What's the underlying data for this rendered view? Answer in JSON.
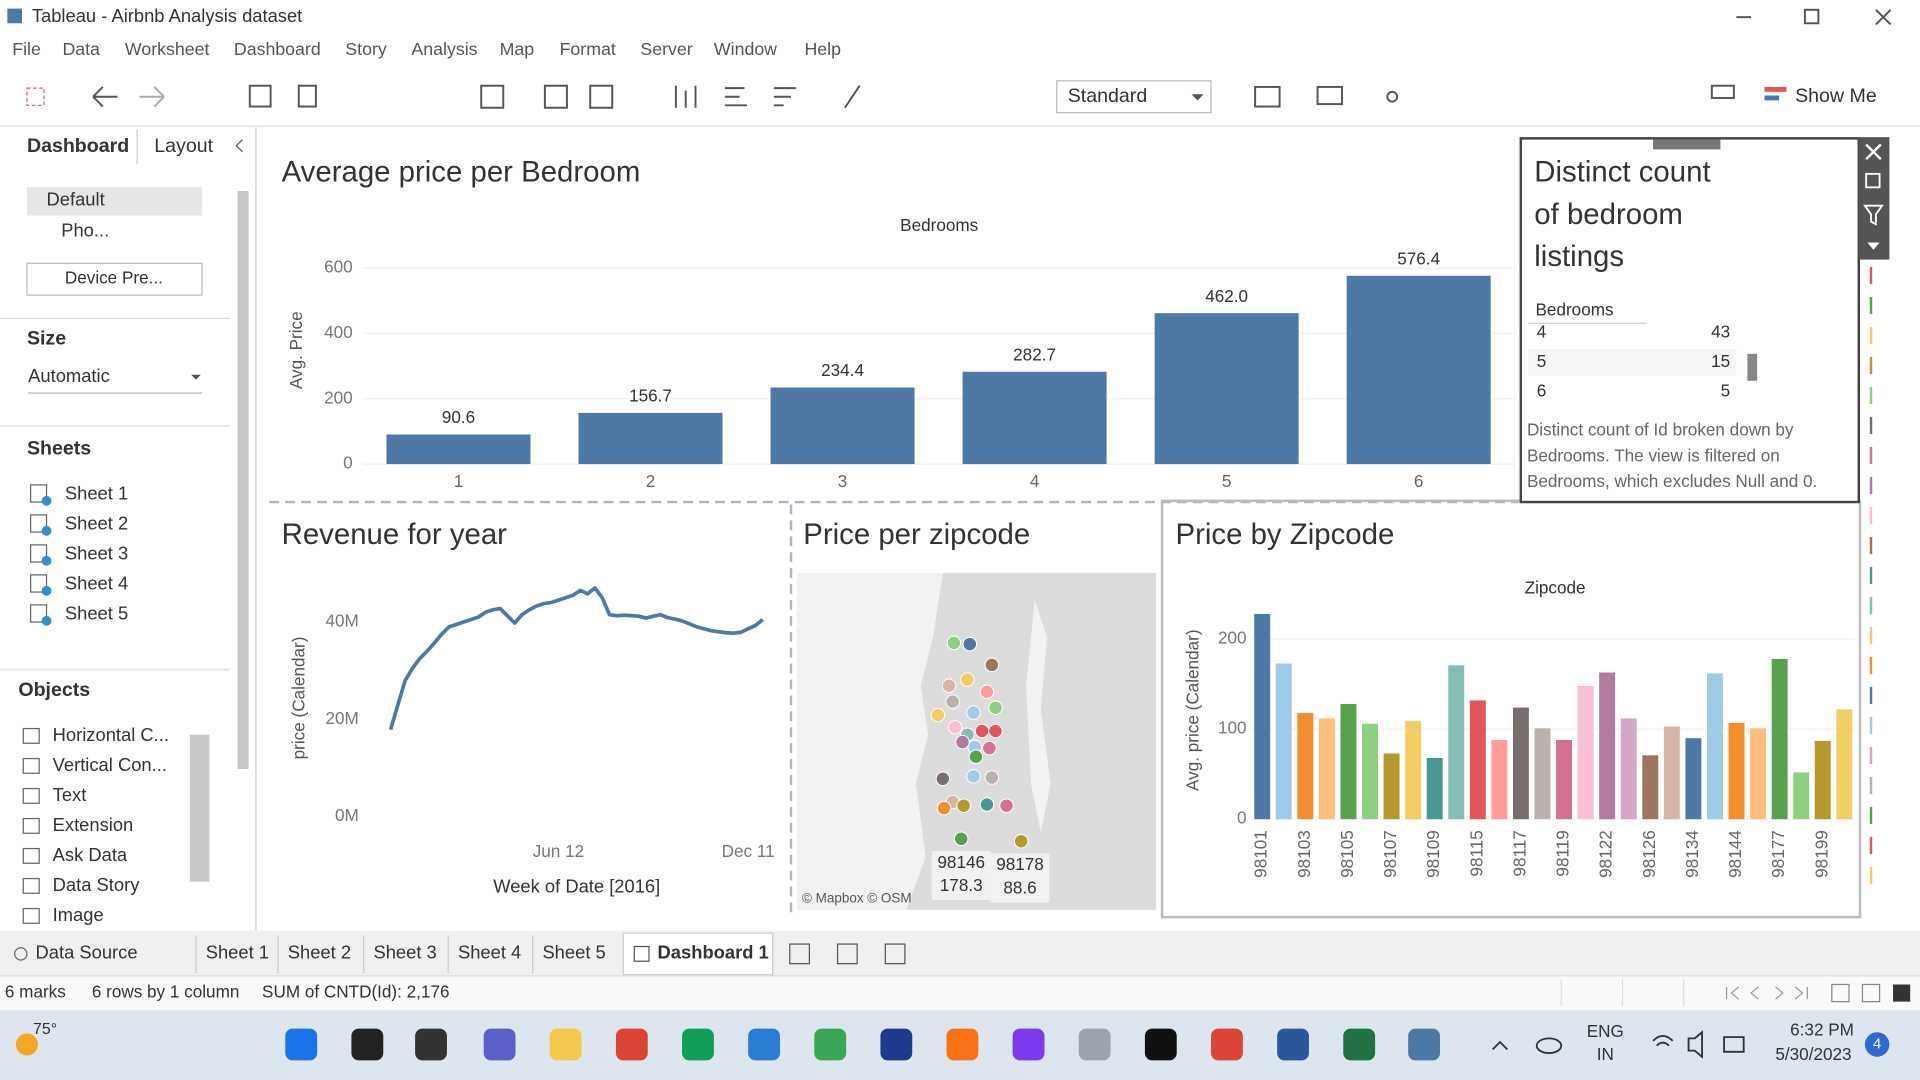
{
  "window": {
    "title": "Tableau - Airbnb Analysis dataset"
  },
  "menu": [
    "File",
    "Data",
    "Worksheet",
    "Dashboard",
    "Story",
    "Analysis",
    "Map",
    "Format",
    "Server",
    "Window",
    "Help"
  ],
  "toolbar": {
    "fit": "Standard",
    "show_me": "Show Me"
  },
  "side_panel": {
    "tabs": [
      "Dashboard",
      "Layout"
    ],
    "device": [
      "Default",
      "Pho..."
    ],
    "device_preview": "Device Pre...",
    "size_title": "Size",
    "size": "Automatic",
    "sheets_title": "Sheets",
    "sheets": [
      "Sheet 1",
      "Sheet 2",
      "Sheet 3",
      "Sheet 4",
      "Sheet 5"
    ],
    "objects_title": "Objects",
    "objects": [
      "Horizontal C...",
      "Vertical Con...",
      "Text",
      "Extension",
      "Ask Data",
      "Data Story",
      "Image"
    ]
  },
  "chart_data": [
    {
      "type": "bar",
      "title": "Average price per Bedroom",
      "column_header": "Bedrooms",
      "y_label": "Avg. Price",
      "categories": [
        "1",
        "2",
        "3",
        "4",
        "5",
        "6"
      ],
      "values": [
        90.6,
        156.7,
        234.4,
        282.7,
        462.0,
        576.4
      ],
      "value_labels": [
        "90.6",
        "156.7",
        "234.4",
        "282.7",
        "462.0",
        "576.4"
      ],
      "color": "#4e79a7",
      "ylim": [
        0,
        650
      ],
      "yticks": [
        0,
        200,
        400,
        600
      ],
      "grid": true
    },
    {
      "type": "line",
      "title": "Revenue for year",
      "y_label": "price (Calendar)",
      "x_label": "Week of Date [2016]",
      "x": [
        1,
        2,
        3,
        4,
        5,
        6,
        7,
        8,
        9,
        10,
        11,
        12,
        13,
        14,
        15,
        16,
        17,
        18,
        19,
        20,
        21,
        22,
        23,
        24,
        25,
        26,
        27,
        28,
        29,
        30,
        31,
        32,
        33,
        34,
        35,
        36,
        37,
        38,
        39,
        40,
        41,
        42,
        43,
        44,
        45,
        46,
        47,
        48,
        49,
        50,
        51,
        52
      ],
      "series": [
        {
          "name": "price (Calendar)",
          "color": "#4e79a7",
          "values": [
            17.9,
            23,
            28,
            30.5,
            32.5,
            34,
            35.7,
            37.5,
            39,
            39.5,
            40,
            40.5,
            41,
            42,
            42.5,
            42.8,
            41.3,
            39.8,
            41.5,
            42.5,
            43.3,
            43.8,
            44,
            44.5,
            45,
            45.5,
            46.5,
            45.8,
            47,
            45,
            41.5,
            41.3,
            41.4,
            41.3,
            41.2,
            40.8,
            41.2,
            41.5,
            40.9,
            40.6,
            40.2,
            39.6,
            39,
            38.6,
            38.2,
            38,
            37.8,
            37.7,
            37.9,
            38.6,
            39.3,
            40.5
          ]
        }
      ],
      "xlim": [
        -2,
        55
      ],
      "xticks": [
        {
          "value": 24,
          "label": "Jun 12"
        },
        {
          "value": 50,
          "label": "Dec 11"
        }
      ],
      "ylim": [
        -3,
        50
      ],
      "yticks": [
        {
          "value": 0,
          "label": "0M"
        },
        {
          "value": 20,
          "label": "20M"
        },
        {
          "value": 40,
          "label": "40M"
        }
      ],
      "grid": false
    },
    {
      "type": "map",
      "title": "Price per zipcode",
      "point_colors": [
        "#8cd17d",
        "#4e79a7",
        "#9d7660",
        "#d7b5a6",
        "#f1ce63",
        "#ff9d9a",
        "#8cd17d",
        "#f1ce63",
        "#bab0ac",
        "#a0cbe8",
        "#fabfd2",
        "#86bcb6",
        "#e15759",
        "#e15759",
        "#a0cbe8",
        "#d37295",
        "#b07aa1",
        "#59a14f",
        "#a0cbe8",
        "#79706e",
        "#bab0ac",
        "#d7b5a6",
        "#f28e2b",
        "#b6992d",
        "#499894",
        "#d37295",
        "#59a14f",
        "#b6992d"
      ],
      "labels": [
        {
          "zipcode": "98146",
          "value": 178.3
        },
        {
          "zipcode": "98178",
          "value": 88.6
        }
      ],
      "attribution": "© Mapbox © OSM"
    },
    {
      "type": "bar",
      "title": "Price by Zipcode",
      "column_header": "Zipcode",
      "y_label": "Avg. price (Calendar)",
      "categories": [
        "98101",
        null,
        "98103",
        null,
        "98105",
        null,
        "98107",
        null,
        "98109",
        null,
        "98115",
        null,
        "98117",
        null,
        "98119",
        null,
        "98122",
        null,
        "98126",
        null,
        "98134",
        null,
        "98144",
        null,
        "98177",
        null,
        "98199",
        null
      ],
      "values": [
        228,
        173,
        118,
        112,
        128,
        106,
        73,
        109,
        68,
        171,
        132,
        88,
        124,
        101,
        88,
        148,
        163,
        112,
        71,
        103,
        90,
        162,
        107,
        101,
        178,
        52,
        87,
        122
      ],
      "colors": [
        "#4e79a7",
        "#a0cbe8",
        "#f28e2b",
        "#ffbe7d",
        "#59a14f",
        "#8cd17d",
        "#b6992d",
        "#f1ce63",
        "#499894",
        "#86bcb6",
        "#e15759",
        "#ff9d9a",
        "#79706e",
        "#bab0ac",
        "#d37295",
        "#fabfd2",
        "#b07aa1",
        "#d4a6c8",
        "#9d7660",
        "#d7b5a6",
        "#4e79a7",
        "#a0cbe8",
        "#f28e2b",
        "#ffbe7d",
        "#59a14f",
        "#8cd17d",
        "#b6992d",
        "#f1ce63"
      ],
      "ylim": [
        0,
        240
      ],
      "yticks": [
        0,
        100,
        200
      ],
      "grid": true
    }
  ],
  "distinct_count": {
    "title_lines": [
      "Distinct count",
      "of bedroom",
      "listings"
    ],
    "column_header": "Bedrooms",
    "rows": [
      {
        "bedrooms": "4",
        "count": 43
      },
      {
        "bedrooms": "5",
        "count": 15
      },
      {
        "bedrooms": "6",
        "count": 5
      }
    ],
    "caption_lines": [
      "Distinct count of Id broken down by",
      "Bedrooms. The view is filtered on",
      "Bedrooms, which excludes Null and 0."
    ]
  },
  "tabs": [
    "Data Source",
    "Sheet 1",
    "Sheet 2",
    "Sheet 3",
    "Sheet 4",
    "Sheet 5",
    "Dashboard 1"
  ],
  "status": [
    "6 marks",
    "6 rows by 1 column",
    "SUM of CNTD(Id): 2,176"
  ],
  "taskbar": {
    "weather": "75°",
    "language": [
      "ENG",
      "IN"
    ],
    "time": "6:32 PM",
    "date": "5/30/2023",
    "notifications": "4"
  }
}
